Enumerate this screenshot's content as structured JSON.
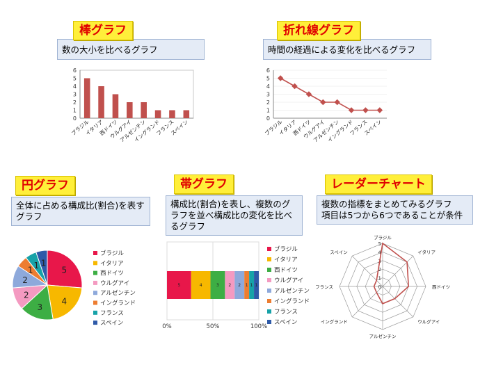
{
  "panels": {
    "bar": {
      "title": "棒グラフ",
      "desc": "数の大小を比べるグラフ"
    },
    "line": {
      "title": "折れ線グラフ",
      "desc": "時間の経過による変化を比べるグラフ"
    },
    "pie": {
      "title": "円グラフ",
      "desc": "全体に占める構成比(割合)を表すグラフ"
    },
    "band": {
      "title": "帯グラフ",
      "desc": "構成比(割合)を表し、複数のグラフを並べ構成比の変化を比べるグラフ"
    },
    "radar": {
      "title": "レーダーチャート",
      "desc": "複数の指標をまとめてみるグラフ\n項目は5つから6つであることが条件"
    }
  },
  "colors": {
    "bar": "#c0504d",
    "line": "#c0504d",
    "slices": [
      "#e8174a",
      "#f7b800",
      "#3dae44",
      "#f49ac1",
      "#8ea9db",
      "#ed7d31",
      "#17a2a8",
      "#2e5aa8"
    ]
  },
  "chart_data": [
    {
      "type": "bar",
      "categories": [
        "ブラジル",
        "イタリア",
        "西ドイツ",
        "ウルグアイ",
        "アルゼンチン",
        "イングランド",
        "フランス",
        "スペイン"
      ],
      "values": [
        5,
        4,
        3,
        2,
        2,
        1,
        1,
        1
      ],
      "ylim": [
        0,
        6
      ],
      "yticks": [
        "0",
        "1",
        "2",
        "3",
        "4",
        "5",
        "6"
      ]
    },
    {
      "type": "line",
      "categories": [
        "ブラジル",
        "イタリア",
        "西ドイツ",
        "ウルグアイ",
        "アルゼンチン",
        "イングランド",
        "フランス",
        "スペイン"
      ],
      "values": [
        5,
        4,
        3,
        2,
        2,
        1,
        1,
        1
      ],
      "ylim": [
        0,
        6
      ],
      "yticks": [
        "0",
        "1",
        "2",
        "3",
        "4",
        "5",
        "6"
      ]
    },
    {
      "type": "pie",
      "categories": [
        "ブラジル",
        "イタリア",
        "西ドイツ",
        "ウルグアイ",
        "アルゼンチン",
        "イングランド",
        "フランス",
        "スペイン"
      ],
      "values": [
        5,
        4,
        3,
        2,
        2,
        1,
        1,
        1
      ],
      "labels": [
        "5",
        "4",
        "3",
        "2",
        "2",
        "1",
        "1",
        "1"
      ]
    },
    {
      "type": "bar",
      "orientation": "stacked-horizontal",
      "categories": [
        "ブラジル",
        "イタリア",
        "西ドイツ",
        "ウルグアイ",
        "アルゼンチン",
        "イングランド",
        "フランス",
        "スペイン"
      ],
      "values": [
        5,
        4,
        3,
        2,
        2,
        1,
        1,
        1
      ],
      "labels": [
        "5",
        "4",
        "3",
        "2",
        "2",
        "1",
        "1",
        "1"
      ],
      "xticks": [
        "0%",
        "50%",
        "100%"
      ]
    },
    {
      "type": "radar",
      "categories": [
        "ブラジル",
        "イタリア",
        "西ドイツ",
        "ウルグアイ",
        "アルゼンチン",
        "イングランド",
        "フランス",
        "スペイン"
      ],
      "values": [
        5,
        4,
        3,
        2,
        2,
        1,
        1,
        1
      ],
      "rlim": [
        0,
        5
      ],
      "rticks": [
        "0",
        "1",
        "2",
        "3",
        "4",
        "5"
      ]
    }
  ]
}
